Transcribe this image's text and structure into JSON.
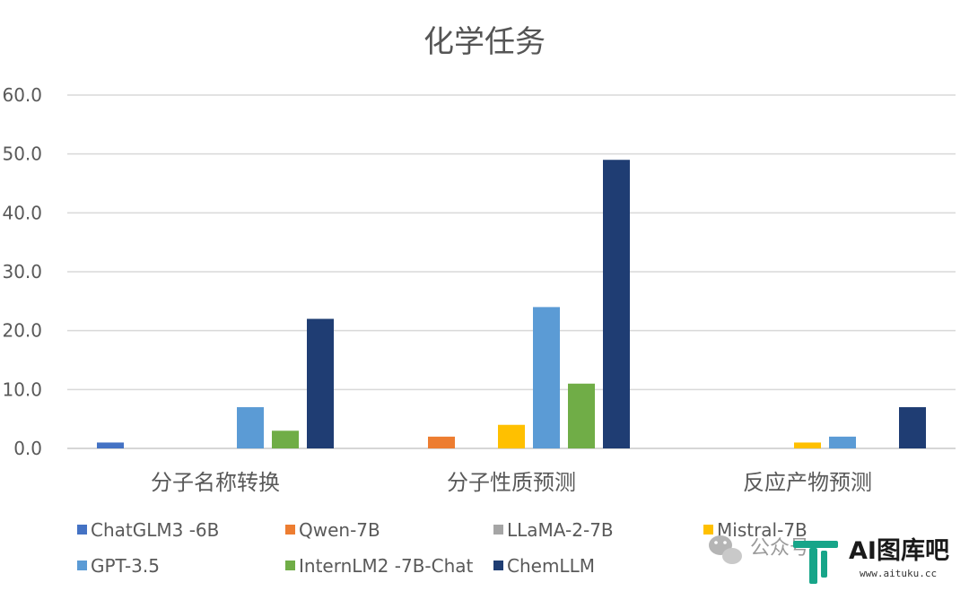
{
  "chart_data": {
    "type": "bar",
    "title": "化学任务",
    "xlabel": "",
    "ylabel": "",
    "ylim": [
      0,
      60
    ],
    "yticks": [
      "0.0",
      "10.0",
      "20.0",
      "30.0",
      "40.0",
      "50.0",
      "60.0"
    ],
    "grid": true,
    "legend_position": "bottom",
    "categories": [
      "分子名称转换",
      "分子性质预测",
      "反应产物预测"
    ],
    "series": [
      {
        "name": "ChatGLM3 -6B",
        "color": "#4472c4",
        "values": [
          1,
          0,
          0
        ]
      },
      {
        "name": "Qwen-7B",
        "color": "#ed7d31",
        "values": [
          0,
          2,
          0
        ]
      },
      {
        "name": "LLaMA-2-7B",
        "color": "#a5a5a5",
        "values": [
          0,
          0,
          0
        ]
      },
      {
        "name": "Mistral-7B",
        "color": "#ffc000",
        "values": [
          0,
          4,
          1
        ]
      },
      {
        "name": "GPT-3.5",
        "color": "#5b9bd5",
        "values": [
          7,
          24,
          2
        ]
      },
      {
        "name": "InternLM2 -7B-Chat",
        "color": "#70ad47",
        "values": [
          3,
          11,
          0
        ]
      },
      {
        "name": "ChemLLM",
        "color": "#1f3d73",
        "values": [
          22,
          49,
          7
        ]
      }
    ]
  },
  "watermark": {
    "wechat_icon": "wechat-icon",
    "text": "公众号",
    "logo_text": "AI图库吧",
    "logo_url": "www.aituku.cc",
    "logo_color": "#17a589"
  }
}
